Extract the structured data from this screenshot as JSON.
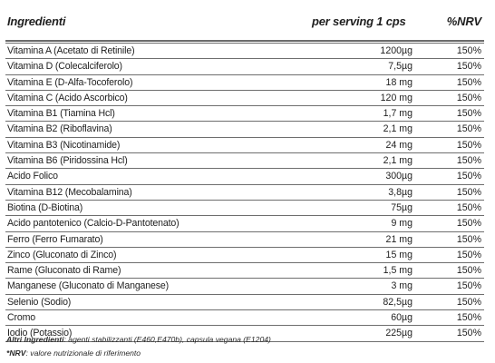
{
  "header": {
    "ingredients": "Ingredienti",
    "serving": "per serving 1 cps",
    "nrv": "%NRV"
  },
  "rows": [
    {
      "name": "Vitamina A (Acetato di Retinile)",
      "amount": "1200µg",
      "nrv": "150%"
    },
    {
      "name": "Vitamina D (Colecalciferolo)",
      "amount": "7,5µg",
      "nrv": "150%"
    },
    {
      "name": "Vitamina E (D-Alfa-Tocoferolo)",
      "amount": "18 mg",
      "nrv": "150%"
    },
    {
      "name": "Vitamina C (Acido Ascorbico)",
      "amount": "120 mg",
      "nrv": "150%"
    },
    {
      "name": "Vitamina B1 (Tiamina Hcl)",
      "amount": "1,7 mg",
      "nrv": "150%"
    },
    {
      "name": "Vitamina B2 (Riboflavina)",
      "amount": "2,1 mg",
      "nrv": "150%"
    },
    {
      "name": "Vitamina B3 (Nicotinamide)",
      "amount": "24 mg",
      "nrv": "150%"
    },
    {
      "name": "Vitamina B6 (Piridossina Hcl)",
      "amount": "2,1 mg",
      "nrv": "150%"
    },
    {
      "name": "Acido Folico",
      "amount": "300µg",
      "nrv": "150%"
    },
    {
      "name": "Vitamina B12 (Mecobalamina)",
      "amount": "3,8µg",
      "nrv": "150%"
    },
    {
      "name": "Biotina (D-Biotina)",
      "amount": "75µg",
      "nrv": "150%"
    },
    {
      "name": "Acido pantotenico (Calcio-D-Pantotenato)",
      "amount": "9 mg",
      "nrv": "150%"
    },
    {
      "name": "Ferro (Ferro Fumarato)",
      "amount": "21 mg",
      "nrv": "150%"
    },
    {
      "name": "Zinco (Gluconato di Zinco)",
      "amount": "15 mg",
      "nrv": "150%"
    },
    {
      "name": "Rame (Gluconato di Rame)",
      "amount": "1,5 mg",
      "nrv": "150%"
    },
    {
      "name": "Manganese (Gluconato di Manganese)",
      "amount": "3 mg",
      "nrv": "150%"
    },
    {
      "name": "Selenio (Sodio)",
      "amount": "82,5µg",
      "nrv": "150%"
    },
    {
      "name": "Cromo",
      "amount": "60µg",
      "nrv": "150%"
    },
    {
      "name": "Iodio (Potassio)",
      "amount": "225µg",
      "nrv": "150%"
    }
  ],
  "footer": {
    "other_label": "Altri Ingredienti",
    "other_text": ": agenti stabilizzanti (E460,E470b), capsula vegana (E1204)",
    "nrv_label": "*NRV",
    "nrv_text": ": valore nutrizionale di riferimento"
  }
}
